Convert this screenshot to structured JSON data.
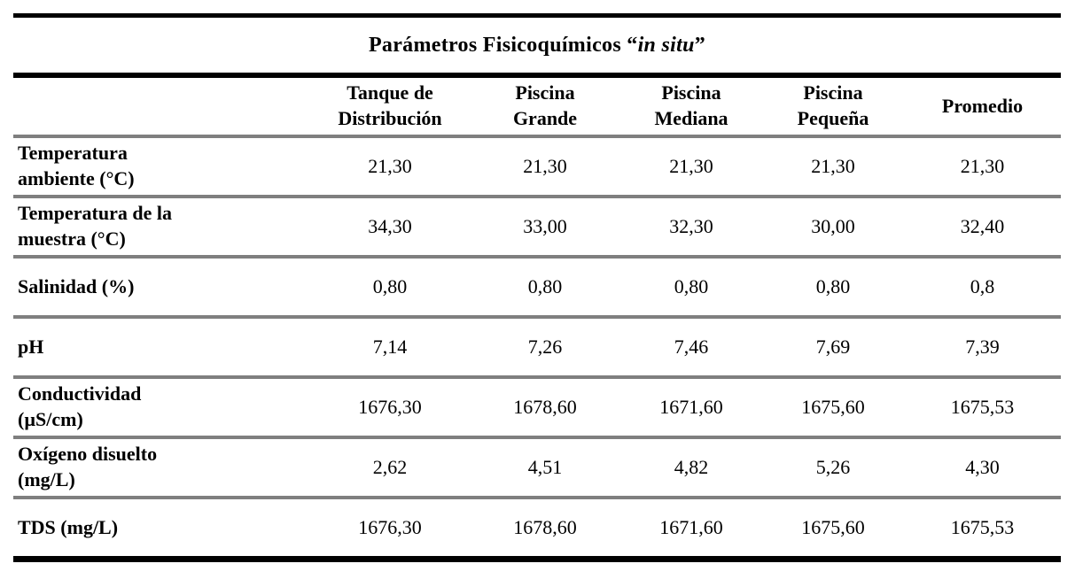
{
  "title": {
    "prefix": "Parámetros Fisicoquímicos ",
    "quote_open": "“",
    "italic": "in situ",
    "quote_close": "”"
  },
  "colors": {
    "rule_black": "#000000",
    "rule_gray": "#7f7f7f",
    "text": "#000000",
    "background": "#ffffff"
  },
  "table": {
    "columns": [
      {
        "lines": [
          "",
          ""
        ]
      },
      {
        "lines": [
          "Tanque de",
          "Distribución"
        ]
      },
      {
        "lines": [
          "Piscina",
          "Grande"
        ]
      },
      {
        "lines": [
          "Piscina",
          "Mediana"
        ]
      },
      {
        "lines": [
          "Piscina",
          "Pequeña"
        ]
      },
      {
        "lines": [
          "Promedio"
        ]
      }
    ],
    "rows": [
      {
        "label_lines": [
          "Temperatura",
          "ambiente (°C)"
        ],
        "values": [
          "21,30",
          "21,30",
          "21,30",
          "21,30",
          "21,30"
        ]
      },
      {
        "label_lines": [
          "Temperatura de la",
          "muestra (°C)"
        ],
        "values": [
          "34,30",
          "33,00",
          "32,30",
          "30,00",
          "32,40"
        ]
      },
      {
        "label_lines": [
          "Salinidad (%)"
        ],
        "values": [
          "0,80",
          "0,80",
          "0,80",
          "0,80",
          "0,8"
        ]
      },
      {
        "label_lines": [
          "pH"
        ],
        "values": [
          "7,14",
          "7,26",
          "7,46",
          "7,69",
          "7,39"
        ]
      },
      {
        "label_lines": [
          "Conductividad",
          "(µS/cm)"
        ],
        "values": [
          "1676,30",
          "1678,60",
          "1671,60",
          "1675,60",
          "1675,53"
        ]
      },
      {
        "label_lines": [
          "Oxígeno disuelto",
          "(mg/L)"
        ],
        "values": [
          "2,62",
          "4,51",
          "4,82",
          "5,26",
          "4,30"
        ]
      },
      {
        "label_lines": [
          "TDS (mg/L)"
        ],
        "values": [
          "1676,30",
          "1678,60",
          "1671,60",
          "1675,60",
          "1675,53"
        ]
      }
    ]
  }
}
